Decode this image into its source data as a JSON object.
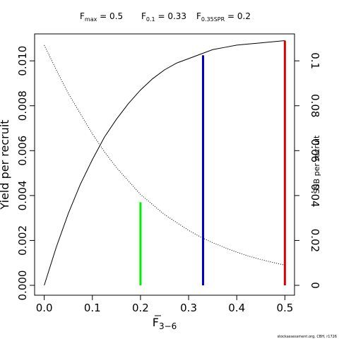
{
  "header": {
    "items": [
      {
        "base": "F",
        "sub": "max",
        "value": " = 0.5"
      },
      {
        "base": "F",
        "sub": "0.1",
        "value": " = 0.33"
      },
      {
        "base": "F",
        "sub": "0.35SPR",
        "value": " = 0.2"
      }
    ]
  },
  "credit": "stockassessment.org, CBH, r1726",
  "chart_data": {
    "type": "line",
    "xlabel": {
      "base": "F",
      "sub": "3−6"
    },
    "ylabel_left": "Yield per recruit",
    "ylabel_right": "SSB per recruit",
    "xlim": [
      -0.02,
      0.52
    ],
    "ylim_left": [
      -0.00044,
      0.0112
    ],
    "ylim_right": [
      -0.0044,
      0.112
    ],
    "x_ticks": [
      0.0,
      0.1,
      0.2,
      0.3,
      0.4,
      0.5
    ],
    "x_tick_labels": [
      "0.0",
      "0.1",
      "0.2",
      "0.3",
      "0.4",
      "0.5"
    ],
    "y_left_ticks": [
      0.0,
      0.002,
      0.004,
      0.006,
      0.008,
      0.01
    ],
    "y_left_tick_labels": [
      "0.000",
      "0.002",
      "0.004",
      "0.006",
      "0.008",
      "0.010"
    ],
    "y_right_ticks": [
      0.0,
      0.02,
      0.04,
      0.06,
      0.08,
      0.1
    ],
    "y_right_tick_labels": [
      "0",
      "0.02",
      "0.04",
      "0.06",
      "0.08",
      "0.1"
    ],
    "grid": false,
    "series": [
      {
        "axis": "left",
        "style": "solid",
        "x": [
          0.0,
          0.025,
          0.05,
          0.075,
          0.1,
          0.125,
          0.15,
          0.175,
          0.2,
          0.225,
          0.25,
          0.275,
          0.3,
          0.325,
          0.35,
          0.375,
          0.4,
          0.425,
          0.45,
          0.475,
          0.5
        ],
        "y": [
          0.0,
          0.0017,
          0.0032,
          0.0045,
          0.0056,
          0.0066,
          0.0074,
          0.0081,
          0.0087,
          0.0092,
          0.0096,
          0.0099,
          0.0101,
          0.0103,
          0.0105,
          0.0106,
          0.0107,
          0.01075,
          0.0108,
          0.01085,
          0.0109
        ]
      },
      {
        "axis": "right",
        "style": "dotted",
        "x": [
          0.0,
          0.025,
          0.05,
          0.075,
          0.1,
          0.125,
          0.15,
          0.175,
          0.2,
          0.225,
          0.25,
          0.275,
          0.3,
          0.325,
          0.35,
          0.375,
          0.4,
          0.425,
          0.45,
          0.475,
          0.5
        ],
        "y": [
          0.107,
          0.096,
          0.0855,
          0.0765,
          0.0675,
          0.0595,
          0.0525,
          0.0465,
          0.0405,
          0.036,
          0.0315,
          0.028,
          0.0245,
          0.0215,
          0.019,
          0.0168,
          0.0148,
          0.013,
          0.0115,
          0.0102,
          0.009
        ]
      }
    ],
    "reference_lines": [
      {
        "x": 0.2,
        "y_bottom": 0.0,
        "y_top": 0.0037,
        "color": "#00ee00"
      },
      {
        "x": 0.33,
        "y_bottom": 0.0,
        "y_top": 0.01025,
        "color": "#0000cc"
      },
      {
        "x": 0.5,
        "y_bottom": 0.0,
        "y_top": 0.0109,
        "color": "#dd0000"
      }
    ]
  }
}
